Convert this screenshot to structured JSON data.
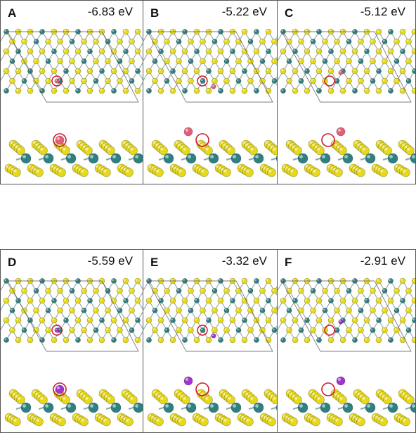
{
  "panels": [
    {
      "id": "A",
      "label": "A",
      "energy": "-6.83 eV",
      "adatom": "pink",
      "config": 0
    },
    {
      "id": "B",
      "label": "B",
      "energy": "-5.22 eV",
      "adatom": "pink",
      "config": 1
    },
    {
      "id": "C",
      "label": "C",
      "energy": "-5.12 eV",
      "adatom": "pink",
      "config": 2
    },
    {
      "id": "D",
      "label": "D",
      "energy": "-5.59 eV",
      "adatom": "purple",
      "config": 0
    },
    {
      "id": "E",
      "label": "E",
      "energy": "-3.32 eV",
      "adatom": "purple",
      "config": 1
    },
    {
      "id": "F",
      "label": "F",
      "energy": "-2.91 eV",
      "adatom": "purple",
      "config": 2
    }
  ],
  "colors": {
    "sulfur": "#e6d81a",
    "metal": "#2f8080",
    "pink": "#e0607a",
    "purple": "#a234d0",
    "circle": "#d0182a",
    "cell": "#555555"
  }
}
